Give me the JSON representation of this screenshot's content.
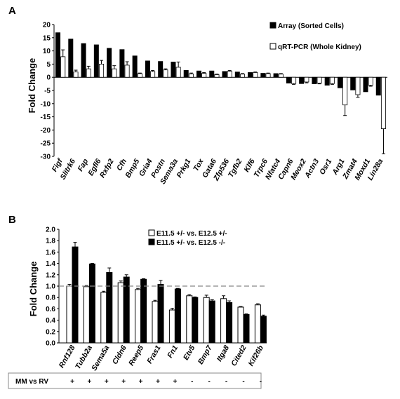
{
  "chart_data": [
    {
      "type": "bar",
      "panel": "A",
      "ylabel": "Fold Change",
      "ylim": [
        -30,
        20
      ],
      "yticks": [
        20,
        15,
        10,
        5,
        0,
        -5,
        -10,
        -15,
        -20,
        -25,
        -30
      ],
      "categories": [
        "Figf",
        "Slitrk6",
        "Fap",
        "Egfl6",
        "Rxfp2",
        "Cfh",
        "Bmp5",
        "Gria4",
        "Postn",
        "Sema3a",
        "Prkg1",
        "Tox",
        "Gata6",
        "Zfp536",
        "Tgfb2",
        "Klf6",
        "Trpc6",
        "Nfatc4",
        "Capn6",
        "Meox2",
        "Actn3",
        "Osr1",
        "Arg1",
        "Zmat4",
        "Moxd1",
        "Lin28a"
      ],
      "series": [
        {
          "name": "Array (Sorted Cells)",
          "color": "#000000",
          "values": [
            16.9,
            14.5,
            12.8,
            12.3,
            11.0,
            10.5,
            8.1,
            6.2,
            6.0,
            5.8,
            2.6,
            2.4,
            2.4,
            2.2,
            2.0,
            1.8,
            1.5,
            1.4,
            -2.2,
            -2.4,
            -2.5,
            -3.0,
            -4.0,
            -4.8,
            -5.5,
            -6.8
          ]
        },
        {
          "name": "qRT-PCR (Whole Kidney)",
          "color": "#ffffff",
          "values": [
            7.8,
            2.0,
            3.2,
            5.0,
            3.2,
            4.6,
            1.4,
            2.2,
            2.8,
            3.8,
            1.3,
            1.5,
            1.0,
            2.3,
            1.2,
            1.8,
            1.4,
            1.2,
            -2.4,
            -1.8,
            -2.2,
            -2.4,
            -10.5,
            -6.6,
            -3.0,
            -19.5
          ],
          "errors": [
            2.6,
            0.7,
            1.0,
            1.4,
            1.2,
            1.3,
            0.2,
            0.4,
            0.4,
            2.0,
            0.3,
            0.3,
            0.2,
            0.3,
            0.2,
            0.2,
            0.2,
            0.2,
            0.3,
            0.3,
            0.3,
            0.3,
            4.0,
            1.0,
            0.4,
            9.5
          ]
        }
      ]
    },
    {
      "type": "bar",
      "panel": "B",
      "ylabel": "Fold Change",
      "ylim": [
        0,
        2.0
      ],
      "yticks": [
        "2.0",
        "1.8",
        "1.6",
        "1.4",
        "1.2",
        "1.0",
        "0.8",
        "0.6",
        "0.4",
        "0.2",
        "0.0"
      ],
      "reference_line": 1.0,
      "categories": [
        "Rnf128",
        "Tubb2a",
        "Sema5a",
        "Cldn6",
        "Reep5",
        "Fras1",
        "Fn1",
        "Etv5",
        "Bmp7",
        "Itga8",
        "Cited2",
        "Kif26b"
      ],
      "series": [
        {
          "name": "E11.5 +/- vs. E12.5 +/-",
          "color": "#ffffff",
          "values": [
            1.0,
            0.99,
            0.89,
            1.06,
            0.94,
            0.73,
            0.58,
            0.83,
            0.8,
            0.78,
            0.63,
            0.67
          ],
          "errors": [
            0.03,
            0.02,
            0.02,
            0.03,
            0.02,
            0.02,
            0.03,
            0.02,
            0.04,
            0.05,
            0.01,
            0.02
          ]
        },
        {
          "name": "E11.5 +/- vs. E12.5 -/-",
          "color": "#000000",
          "values": [
            1.69,
            1.39,
            1.24,
            1.16,
            1.12,
            1.03,
            0.95,
            0.8,
            0.74,
            0.71,
            0.5,
            0.47
          ],
          "errors": [
            0.08,
            0.01,
            0.08,
            0.04,
            0.01,
            0.07,
            0.01,
            0.01,
            0.02,
            0.03,
            0.01,
            0.02
          ]
        }
      ],
      "mm_label": "MM vs RV",
      "mm_values": [
        "+",
        "+",
        "+",
        "+",
        "+",
        "+",
        "+",
        "-",
        "-",
        "-",
        "-",
        "-"
      ]
    }
  ]
}
